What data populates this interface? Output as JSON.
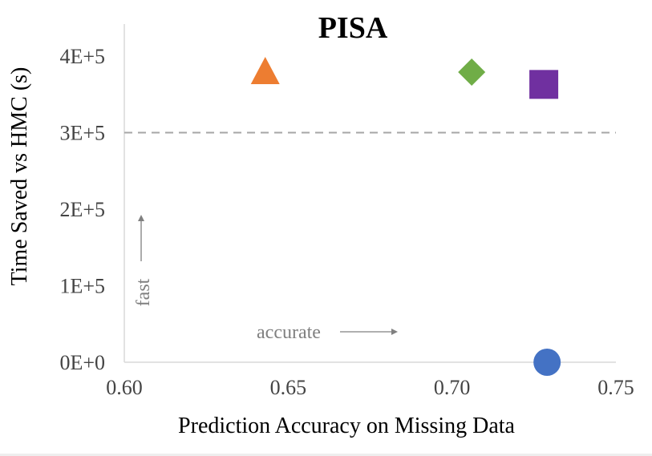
{
  "chart_data": {
    "type": "scatter",
    "title": "PISA",
    "xlabel": "Prediction Accuracy on Missing Data",
    "ylabel": "Time Saved vs HMC (s)",
    "xlim": [
      0.6,
      0.75
    ],
    "ylim": [
      0,
      400000
    ],
    "x_ticks": [
      0.6,
      0.65,
      0.7,
      0.75
    ],
    "x_tick_labels": [
      "0.60",
      "0.65",
      "0.70",
      "0.75"
    ],
    "y_ticks": [
      0,
      100000,
      200000,
      300000,
      400000
    ],
    "y_tick_labels": [
      "0E+0",
      "1E+5",
      "2E+5",
      "3E+5",
      "4E+5"
    ],
    "grid": false,
    "reference_line": {
      "y": 300000,
      "style": "dashed",
      "color": "#a6a6a6"
    },
    "points": [
      {
        "x": 0.643,
        "y": 378000,
        "marker": "triangle",
        "color": "#ed7d31"
      },
      {
        "x": 0.706,
        "y": 379000,
        "marker": "diamond",
        "color": "#70ad47"
      },
      {
        "x": 0.728,
        "y": 363000,
        "marker": "square",
        "color": "#7030a0"
      },
      {
        "x": 0.729,
        "y": 0,
        "marker": "circle",
        "color": "#4472c4"
      }
    ],
    "annotations": {
      "fast": "fast",
      "accurate": "accurate"
    }
  }
}
